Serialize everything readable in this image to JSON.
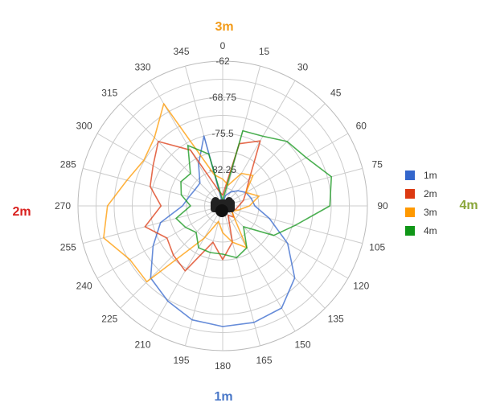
{
  "chart_data": {
    "type": "polar-line",
    "angle_ticks": [
      "0",
      "15",
      "30",
      "45",
      "60",
      "75",
      "90",
      "105",
      "120",
      "135",
      "150",
      "165",
      "180",
      "195",
      "210",
      "225",
      "240",
      "255",
      "270",
      "285",
      "300",
      "315",
      "330",
      "345"
    ],
    "radial_ticks": [
      "-62",
      "-68.75",
      "-75.5",
      "-82.25"
    ],
    "radial_range": [
      -89,
      -62
    ],
    "direction_labels": [
      {
        "text": "3m",
        "position": "top",
        "color": "#f29c1c"
      },
      {
        "text": "4m",
        "position": "right",
        "color": "#8aa63a"
      },
      {
        "text": "1m",
        "position": "bottom",
        "color": "#4a78c8"
      },
      {
        "text": "2m",
        "position": "left",
        "color": "#d9201e"
      }
    ],
    "legend_position": "right",
    "grid": true,
    "series": [
      {
        "name": "1m",
        "color": "#3366cc",
        "angles": [
          0,
          15,
          30,
          45,
          60,
          75,
          90,
          105,
          120,
          135,
          150,
          165,
          180,
          195,
          210,
          225,
          240,
          255,
          270,
          285,
          300,
          315,
          330,
          345
        ],
        "values": [
          -88.5,
          -87.0,
          -86.0,
          -85.0,
          -84.0,
          -83.5,
          -83.0,
          -80.0,
          -75.0,
          -70.0,
          -67.0,
          -66.5,
          -66.5,
          -67.0,
          -68.5,
          -70.0,
          -74.0,
          -77.0,
          -81.5,
          -82.5,
          -83.0,
          -83.0,
          -80.0,
          -75.5
        ]
      },
      {
        "name": "2m",
        "color": "#dc3912",
        "angles": [
          0,
          15,
          30,
          45,
          60,
          75,
          90,
          105,
          120,
          135,
          150,
          165,
          180,
          195,
          210,
          225,
          240,
          255,
          270,
          285,
          300,
          315,
          330,
          345
        ],
        "values": [
          -87.0,
          -77.0,
          -75.0,
          -82.0,
          -84.0,
          -85.0,
          -86.0,
          -86.5,
          -87.0,
          -86.0,
          -87.0,
          -82.0,
          -79.0,
          -82.0,
          -75.0,
          -76.0,
          -77.0,
          -74.0,
          -77.5,
          -75.0,
          -74.0,
          -72.0,
          -77.0,
          -86.0
        ]
      },
      {
        "name": "3m",
        "color": "#ff9900",
        "angles": [
          0,
          15,
          30,
          45,
          60,
          75,
          90,
          105,
          120,
          135,
          150,
          165,
          180,
          195,
          210,
          225,
          240,
          255,
          270,
          285,
          300,
          315,
          330,
          345
        ],
        "values": [
          -84.0,
          -85.0,
          -82.0,
          -81.0,
          -84.0,
          -82.0,
          -84.0,
          -86.0,
          -87.0,
          -86.0,
          -80.0,
          -82.0,
          -84.0,
          -86.0,
          -82.0,
          -69.0,
          -69.0,
          -66.0,
          -67.5,
          -70.5,
          -72.0,
          -71.0,
          -67.0,
          -83.0
        ]
      },
      {
        "name": "4m",
        "color": "#109618",
        "angles": [
          0,
          15,
          30,
          45,
          60,
          75,
          90,
          105,
          120,
          135,
          150,
          165,
          180,
          195,
          210,
          225,
          240,
          255,
          270,
          285,
          300,
          315,
          330,
          345
        ],
        "values": [
          -88.0,
          -74.5,
          -74.0,
          -72.0,
          -71.0,
          -68.0,
          -69.0,
          -75.0,
          -78.0,
          -83.5,
          -80.0,
          -79.0,
          -80.0,
          -80.0,
          -80.0,
          -82.0,
          -81.0,
          -80.0,
          -83.0,
          -81.0,
          -80.0,
          -80.5,
          -76.0,
          -79.0
        ]
      }
    ]
  }
}
